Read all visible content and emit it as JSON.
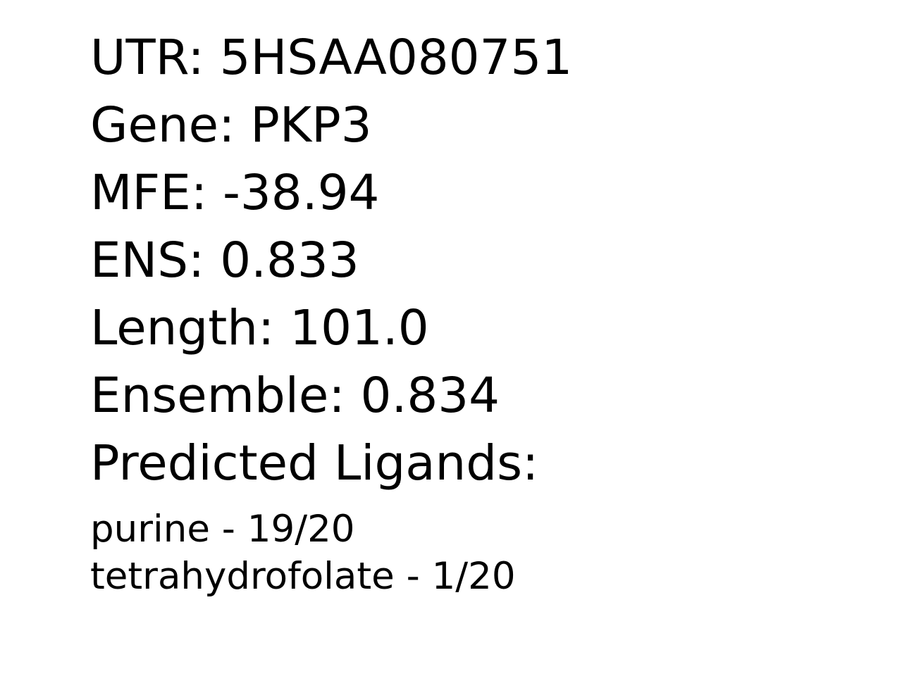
{
  "fields": {
    "utr": "UTR: 5HSAA080751",
    "gene": "Gene: PKP3",
    "mfe": "MFE: -38.94",
    "ens": "ENS: 0.833",
    "length": "Length: 101.0",
    "ensemble": "Ensemble: 0.834",
    "ligands_heading": "Predicted Ligands:"
  },
  "ligands": [
    "purine - 19/20",
    "tetrahydrofolate - 1/20"
  ]
}
